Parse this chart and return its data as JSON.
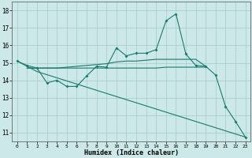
{
  "xlabel": "Humidex (Indice chaleur)",
  "xlim": [
    -0.5,
    23.5
  ],
  "ylim": [
    10.5,
    18.5
  ],
  "yticks": [
    11,
    12,
    13,
    14,
    15,
    16,
    17,
    18
  ],
  "xticks": [
    0,
    1,
    2,
    3,
    4,
    5,
    6,
    7,
    8,
    9,
    10,
    11,
    12,
    13,
    14,
    15,
    16,
    17,
    18,
    19,
    20,
    21,
    22,
    23
  ],
  "bg_color": "#cce8e8",
  "grid_color": "#aad0cc",
  "line_color": "#1a7a6e",
  "line1_x": [
    0,
    1,
    2,
    3,
    4,
    5,
    6,
    7,
    8,
    9,
    10,
    11,
    12,
    13,
    14,
    15,
    16,
    17,
    18,
    19,
    20,
    21,
    22,
    23
  ],
  "line1_y": [
    15.1,
    14.85,
    14.7,
    13.85,
    14.0,
    13.65,
    13.65,
    14.25,
    14.8,
    14.75,
    15.85,
    15.4,
    15.55,
    15.55,
    15.75,
    17.4,
    17.8,
    15.5,
    14.85,
    14.8,
    14.3,
    12.5,
    11.65,
    10.75
  ],
  "line2_x": [
    1,
    2,
    3,
    4,
    5,
    6,
    7,
    8,
    9,
    10,
    11,
    12,
    13,
    14,
    15,
    16,
    17,
    18,
    19
  ],
  "line2_y": [
    14.7,
    14.7,
    14.7,
    14.7,
    14.7,
    14.7,
    14.7,
    14.7,
    14.7,
    14.7,
    14.7,
    14.7,
    14.7,
    14.7,
    14.75,
    14.75,
    14.75,
    14.75,
    14.75
  ],
  "line3_x": [
    1,
    2,
    3,
    4,
    5,
    6,
    7,
    8,
    9,
    10,
    11,
    12,
    13,
    14,
    15,
    16,
    17,
    18,
    19
  ],
  "line3_y": [
    14.7,
    14.7,
    14.7,
    14.7,
    14.75,
    14.8,
    14.85,
    14.9,
    14.95,
    15.05,
    15.1,
    15.1,
    15.15,
    15.2,
    15.2,
    15.2,
    15.2,
    15.2,
    14.8
  ],
  "line4_x": [
    0,
    2,
    23
  ],
  "line4_y": [
    15.1,
    14.5,
    10.75
  ]
}
